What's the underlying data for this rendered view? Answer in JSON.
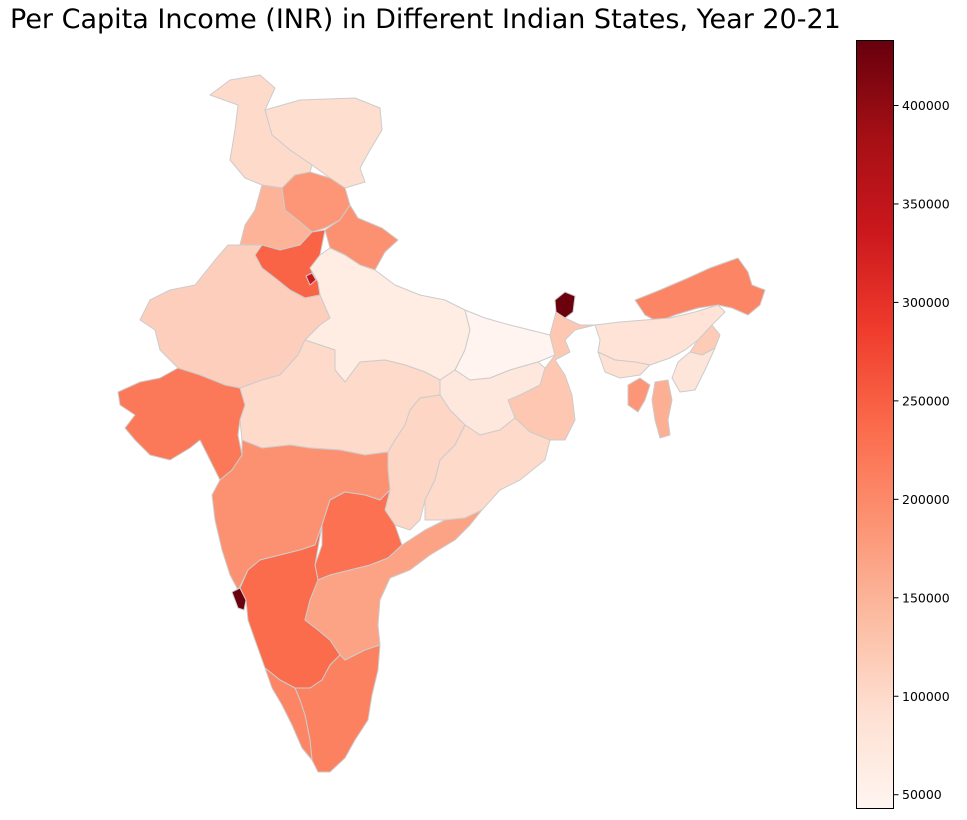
{
  "title": "Per Capita Income (INR) in Different Indian States, Year 20-21",
  "colormap": "Reds",
  "border_color": "#cccccc",
  "colorbar": {
    "vmin": 43000,
    "vmax": 433000,
    "ticks": [
      {
        "value": 50000,
        "label": "50000"
      },
      {
        "value": 100000,
        "label": "100000"
      },
      {
        "value": 150000,
        "label": "150000"
      },
      {
        "value": 200000,
        "label": "200000"
      },
      {
        "value": 250000,
        "label": "250000"
      },
      {
        "value": 300000,
        "label": "300000"
      },
      {
        "value": 350000,
        "label": "350000"
      },
      {
        "value": 400000,
        "label": "400000"
      }
    ]
  },
  "chart_data": {
    "type": "choropleth",
    "regions": [
      {
        "id": "jammu-kashmir",
        "value": 100000
      },
      {
        "id": "ladakh",
        "value": 95000
      },
      {
        "id": "himachal-pradesh",
        "value": 185000
      },
      {
        "id": "punjab",
        "value": 150000
      },
      {
        "id": "uttarakhand",
        "value": 190000
      },
      {
        "id": "haryana",
        "value": 245000
      },
      {
        "id": "delhi",
        "value": 340000
      },
      {
        "id": "rajasthan",
        "value": 115000
      },
      {
        "id": "uttar-pradesh",
        "value": 65000
      },
      {
        "id": "bihar",
        "value": 45000
      },
      {
        "id": "sikkim",
        "value": 430000
      },
      {
        "id": "arunachal-pradesh",
        "value": 205000
      },
      {
        "id": "assam",
        "value": 85000
      },
      {
        "id": "meghalaya",
        "value": 90000
      },
      {
        "id": "nagaland",
        "value": 120000
      },
      {
        "id": "manipur",
        "value": 80000
      },
      {
        "id": "mizoram",
        "value": 155000
      },
      {
        "id": "tripura",
        "value": 185000
      },
      {
        "id": "west-bengal",
        "value": 125000
      },
      {
        "id": "jharkhand",
        "value": 75000
      },
      {
        "id": "odisha",
        "value": 100000
      },
      {
        "id": "chhattisgarh",
        "value": 105000
      },
      {
        "id": "madhya-pradesh",
        "value": 100000
      },
      {
        "id": "gujarat",
        "value": 220000
      },
      {
        "id": "maharashtra",
        "value": 190000
      },
      {
        "id": "goa",
        "value": 430000
      },
      {
        "id": "telangana",
        "value": 230000
      },
      {
        "id": "andhra-pradesh",
        "value": 170000
      },
      {
        "id": "karnataka",
        "value": 235000
      },
      {
        "id": "tamil-nadu",
        "value": 210000
      },
      {
        "id": "kerala",
        "value": 205000
      }
    ]
  }
}
